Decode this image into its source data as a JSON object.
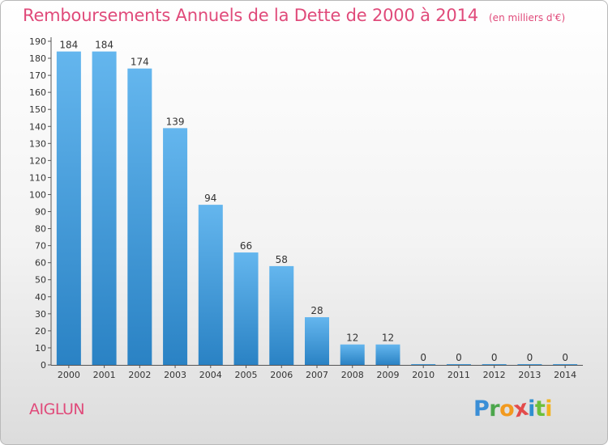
{
  "chart_data": {
    "type": "bar",
    "title": "Remboursements Annuels de la Dette de 2000 à 2014",
    "subtitle": "(en milliers d'€)",
    "categories": [
      "2000",
      "2001",
      "2002",
      "2003",
      "2004",
      "2005",
      "2006",
      "2007",
      "2008",
      "2009",
      "2010",
      "2011",
      "2012",
      "2013",
      "2014"
    ],
    "values": [
      184,
      184,
      174,
      139,
      94,
      66,
      58,
      28,
      12,
      12,
      0,
      0,
      0,
      0,
      0
    ],
    "ylim": [
      0,
      190
    ],
    "yticks": [
      0,
      10,
      20,
      30,
      40,
      50,
      60,
      70,
      80,
      90,
      100,
      110,
      120,
      130,
      140,
      150,
      160,
      170,
      180,
      190
    ],
    "grid": false,
    "bar_color_top": "#64b6ee",
    "bar_color_bottom": "#2a82c4"
  },
  "footer": {
    "commune": "AIGLUN",
    "logo_letters": [
      {
        "ch": "P",
        "color": "#3a8ed6"
      },
      {
        "ch": "r",
        "color": "#4ca64c"
      },
      {
        "ch": "o",
        "color": "#f29a1f"
      },
      {
        "ch": "x",
        "color": "#e34b4b"
      },
      {
        "ch": "i",
        "color": "#2f8fcf"
      },
      {
        "ch": "t",
        "color": "#6cbf3a"
      },
      {
        "ch": "i",
        "color": "#f2b21f"
      }
    ]
  }
}
